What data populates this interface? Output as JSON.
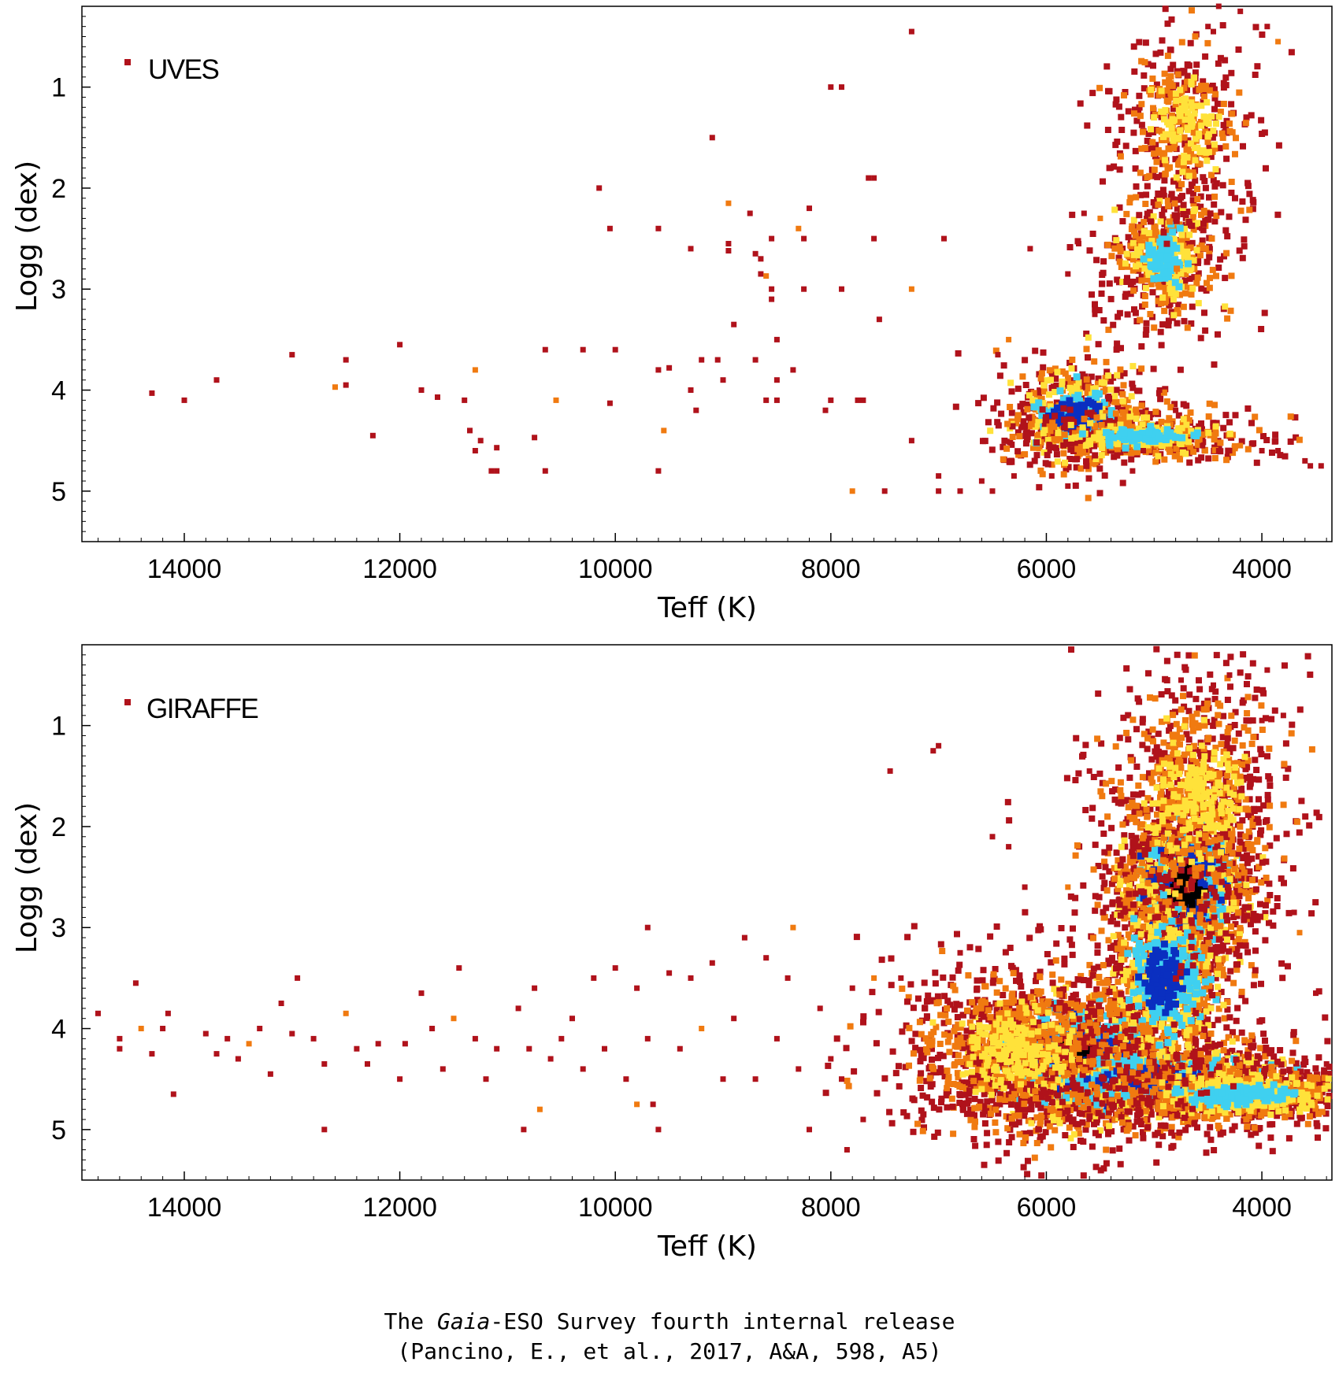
{
  "caption": {
    "line1_before": "The ",
    "line1_italic": "Gaia",
    "line1_after": "-ESO Survey fourth internal release",
    "line2": "(Pancino, E., et al., 2017, A&A, 598, A5)"
  },
  "colors": {
    "sparse": "#b0121b",
    "low": "#f07a10",
    "mid": "#ffe23a",
    "high": "#3fd0f0",
    "peak": "#0a2fc0"
  },
  "chart_data": [
    {
      "type": "scatter",
      "subtype": "density-colored scatter (Kiel diagram)",
      "legend": "UVES",
      "legend_placement": "top-left",
      "xlabel": "Teff (K)",
      "ylabel": "Logg (dex)",
      "x_reversed": true,
      "y_reversed": true,
      "xlim": [
        14950,
        3350
      ],
      "ylim": [
        0.2,
        5.5
      ],
      "xticks": [
        "14000",
        "12000",
        "10000",
        "8000",
        "6000",
        "4000"
      ],
      "yticks": [
        "1",
        "2",
        "3",
        "4",
        "5"
      ],
      "grid": false,
      "density_clumps": [
        {
          "teff": 5750,
          "logg": 4.25,
          "spread_teff": 280,
          "spread_logg": 0.22,
          "level": 4
        },
        {
          "teff": 5100,
          "logg": 4.45,
          "spread_teff": 450,
          "spread_logg": 0.1,
          "level": 3
        },
        {
          "teff": 4900,
          "logg": 2.7,
          "spread_teff": 220,
          "spread_logg": 0.3,
          "level": 3
        },
        {
          "teff": 4700,
          "logg": 1.4,
          "spread_teff": 250,
          "spread_logg": 0.4,
          "level": 2
        }
      ],
      "points": [
        [
          14300,
          4.03
        ],
        [
          14000,
          4.1
        ],
        [
          13700,
          3.9
        ],
        [
          13000,
          3.65
        ],
        [
          12600,
          3.97
        ],
        [
          12500,
          3.7
        ],
        [
          12500,
          3.95
        ],
        [
          12250,
          4.45
        ],
        [
          12000,
          3.55
        ],
        [
          11800,
          4.0
        ],
        [
          11650,
          4.07
        ],
        [
          11400,
          4.1
        ],
        [
          11350,
          4.4
        ],
        [
          11300,
          3.8
        ],
        [
          11250,
          4.5
        ],
        [
          11300,
          4.6
        ],
        [
          11150,
          4.8
        ],
        [
          11100,
          4.57
        ],
        [
          11100,
          4.8
        ],
        [
          10750,
          4.47
        ],
        [
          10650,
          3.6
        ],
        [
          10650,
          4.8
        ],
        [
          10550,
          4.1
        ],
        [
          10300,
          3.6
        ],
        [
          10150,
          2.0
        ],
        [
          10050,
          2.4
        ],
        [
          10050,
          4.13
        ],
        [
          10000,
          3.6
        ],
        [
          9600,
          2.4
        ],
        [
          9600,
          3.8
        ],
        [
          9600,
          4.8
        ],
        [
          9550,
          4.4
        ],
        [
          9500,
          3.78
        ],
        [
          9300,
          2.6
        ],
        [
          9300,
          4.0
        ],
        [
          9250,
          4.2
        ],
        [
          9200,
          3.7
        ],
        [
          9100,
          1.5
        ],
        [
          9050,
          3.7
        ],
        [
          9000,
          3.9
        ],
        [
          8950,
          2.15
        ],
        [
          8950,
          2.55
        ],
        [
          8950,
          2.62
        ],
        [
          8900,
          3.35
        ],
        [
          8750,
          2.25
        ],
        [
          8700,
          2.65
        ],
        [
          8700,
          3.7
        ],
        [
          8650,
          2.7
        ],
        [
          8650,
          2.85
        ],
        [
          8600,
          2.87
        ],
        [
          8600,
          4.1
        ],
        [
          8550,
          2.5
        ],
        [
          8550,
          3.0
        ],
        [
          8550,
          3.1
        ],
        [
          8500,
          3.5
        ],
        [
          8500,
          3.9
        ],
        [
          8500,
          4.1
        ],
        [
          8350,
          3.8
        ],
        [
          8300,
          2.4
        ],
        [
          8250,
          2.5
        ],
        [
          8250,
          3.0
        ],
        [
          8200,
          2.2
        ],
        [
          8050,
          4.2
        ],
        [
          8000,
          1.0
        ],
        [
          8000,
          4.1
        ],
        [
          7900,
          1.0
        ],
        [
          7900,
          3.0
        ],
        [
          7800,
          5.0
        ],
        [
          7750,
          4.1
        ],
        [
          7700,
          4.1
        ],
        [
          7650,
          1.9
        ],
        [
          7600,
          1.9
        ],
        [
          7600,
          2.5
        ],
        [
          7550,
          3.3
        ],
        [
          7500,
          5.0
        ],
        [
          7250,
          0.45
        ],
        [
          7250,
          3.0
        ],
        [
          7250,
          4.5
        ],
        [
          7000,
          4.85
        ],
        [
          7000,
          5.0
        ],
        [
          6950,
          2.5
        ],
        [
          6800,
          5.0
        ],
        [
          6600,
          4.9
        ],
        [
          6500,
          5.0
        ],
        [
          6450,
          3.65
        ],
        [
          6350,
          3.5
        ],
        [
          6300,
          4.85
        ],
        [
          6150,
          2.6
        ],
        [
          5950,
          4.85
        ],
        [
          5800,
          2.85
        ],
        [
          5800,
          4.95
        ],
        [
          5700,
          2.55
        ],
        [
          5650,
          2.25
        ],
        [
          5550,
          3.25
        ],
        [
          5500,
          2.3
        ],
        [
          5400,
          1.8
        ],
        [
          5200,
          4.8
        ],
        [
          5100,
          4.6
        ],
        [
          4950,
          4.0
        ],
        [
          4800,
          4.2
        ],
        [
          4550,
          4.55
        ],
        [
          4400,
          4.6
        ],
        [
          4300,
          4.6
        ],
        [
          4200,
          4.55
        ],
        [
          4000,
          4.6
        ],
        [
          3850,
          4.6
        ],
        [
          3600,
          4.7
        ],
        [
          3550,
          4.75
        ],
        [
          3450,
          4.75
        ],
        [
          4400,
          0.2
        ],
        [
          4200,
          0.25
        ],
        [
          3950,
          0.4
        ],
        [
          3850,
          0.55
        ],
        [
          4500,
          0.4
        ],
        [
          4450,
          0.45
        ]
      ]
    },
    {
      "type": "scatter",
      "subtype": "density-colored scatter (Kiel diagram)",
      "legend": "GIRAFFE",
      "legend_placement": "top-left",
      "xlabel": "Teff (K)",
      "ylabel": "Logg (dex)",
      "x_reversed": true,
      "y_reversed": true,
      "xlim": [
        14950,
        3350
      ],
      "ylim": [
        0.2,
        5.5
      ],
      "xticks": [
        "14000",
        "12000",
        "10000",
        "8000",
        "6000",
        "4000"
      ],
      "yticks": [
        "1",
        "2",
        "3",
        "4",
        "5"
      ],
      "grid": false,
      "density_clumps": [
        {
          "teff": 5700,
          "logg": 4.3,
          "spread_teff": 420,
          "spread_logg": 0.3,
          "level": 5
        },
        {
          "teff": 5000,
          "logg": 4.5,
          "spread_teff": 700,
          "spread_logg": 0.18,
          "level": 4
        },
        {
          "teff": 4200,
          "logg": 4.65,
          "spread_teff": 500,
          "spread_logg": 0.12,
          "level": 3
        },
        {
          "teff": 4700,
          "logg": 2.6,
          "spread_teff": 260,
          "spread_logg": 0.35,
          "level": 5
        },
        {
          "teff": 4900,
          "logg": 3.5,
          "spread_teff": 260,
          "spread_logg": 0.4,
          "level": 4
        },
        {
          "teff": 4600,
          "logg": 1.7,
          "spread_teff": 350,
          "spread_logg": 0.5,
          "level": 2
        },
        {
          "teff": 6300,
          "logg": 4.2,
          "spread_teff": 450,
          "spread_logg": 0.35,
          "level": 2
        }
      ],
      "points": [
        [
          14800,
          3.85
        ],
        [
          14600,
          4.1
        ],
        [
          14600,
          4.2
        ],
        [
          14450,
          3.55
        ],
        [
          14400,
          4.0
        ],
        [
          14300,
          4.25
        ],
        [
          14200,
          4.0
        ],
        [
          14150,
          3.85
        ],
        [
          14100,
          4.65
        ],
        [
          13800,
          4.05
        ],
        [
          13700,
          4.25
        ],
        [
          13600,
          4.1
        ],
        [
          13500,
          4.3
        ],
        [
          13400,
          4.15
        ],
        [
          13300,
          4.0
        ],
        [
          13200,
          4.45
        ],
        [
          13100,
          3.75
        ],
        [
          13000,
          4.05
        ],
        [
          12950,
          3.5
        ],
        [
          12800,
          4.1
        ],
        [
          12700,
          4.35
        ],
        [
          12700,
          5.0
        ],
        [
          12500,
          3.85
        ],
        [
          12400,
          4.2
        ],
        [
          12300,
          4.35
        ],
        [
          12200,
          4.15
        ],
        [
          12000,
          4.5
        ],
        [
          11950,
          4.15
        ],
        [
          11800,
          3.65
        ],
        [
          11700,
          4.0
        ],
        [
          11600,
          4.4
        ],
        [
          11500,
          3.9
        ],
        [
          11450,
          3.4
        ],
        [
          11300,
          4.1
        ],
        [
          11200,
          4.5
        ],
        [
          11100,
          4.2
        ],
        [
          10900,
          3.8
        ],
        [
          10850,
          5.0
        ],
        [
          10800,
          4.2
        ],
        [
          10750,
          3.6
        ],
        [
          10700,
          4.8
        ],
        [
          10600,
          4.3
        ],
        [
          10500,
          4.1
        ],
        [
          10400,
          3.9
        ],
        [
          10300,
          4.4
        ],
        [
          10200,
          3.5
        ],
        [
          10100,
          4.2
        ],
        [
          10000,
          3.4
        ],
        [
          9900,
          4.5
        ],
        [
          9800,
          4.75
        ],
        [
          9800,
          3.6
        ],
        [
          9700,
          3.0
        ],
        [
          9700,
          4.1
        ],
        [
          9650,
          4.75
        ],
        [
          9600,
          5.0
        ],
        [
          9500,
          3.45
        ],
        [
          9400,
          4.2
        ],
        [
          9300,
          3.5
        ],
        [
          9200,
          4.0
        ],
        [
          9100,
          3.35
        ],
        [
          9000,
          4.5
        ],
        [
          8900,
          3.9
        ],
        [
          8800,
          3.1
        ],
        [
          8700,
          4.5
        ],
        [
          8600,
          3.3
        ],
        [
          8500,
          4.1
        ],
        [
          8400,
          3.5
        ],
        [
          8350,
          3.0
        ],
        [
          8300,
          4.4
        ],
        [
          8200,
          5.0
        ],
        [
          8100,
          3.8
        ],
        [
          8000,
          4.3
        ],
        [
          7900,
          4.5
        ],
        [
          7850,
          5.2
        ],
        [
          7800,
          3.6
        ],
        [
          7700,
          4.9
        ],
        [
          7600,
          3.5
        ],
        [
          7450,
          1.45
        ],
        [
          7350,
          3.5
        ],
        [
          7050,
          1.25
        ],
        [
          7000,
          1.2
        ],
        [
          6800,
          3.25
        ],
        [
          6500,
          2.1
        ],
        [
          6350,
          2.2
        ],
        [
          6200,
          2.6
        ],
        [
          5800,
          2.6
        ],
        [
          5600,
          1.45
        ],
        [
          4750,
          0.55
        ],
        [
          4450,
          0.6
        ],
        [
          4300,
          0.5
        ],
        [
          3950,
          0.45
        ],
        [
          4000,
          0.95
        ],
        [
          3800,
          0.9
        ],
        [
          3700,
          2.85
        ],
        [
          3650,
          3.05
        ],
        [
          3500,
          3.65
        ],
        [
          3400,
          4.35
        ]
      ]
    }
  ]
}
